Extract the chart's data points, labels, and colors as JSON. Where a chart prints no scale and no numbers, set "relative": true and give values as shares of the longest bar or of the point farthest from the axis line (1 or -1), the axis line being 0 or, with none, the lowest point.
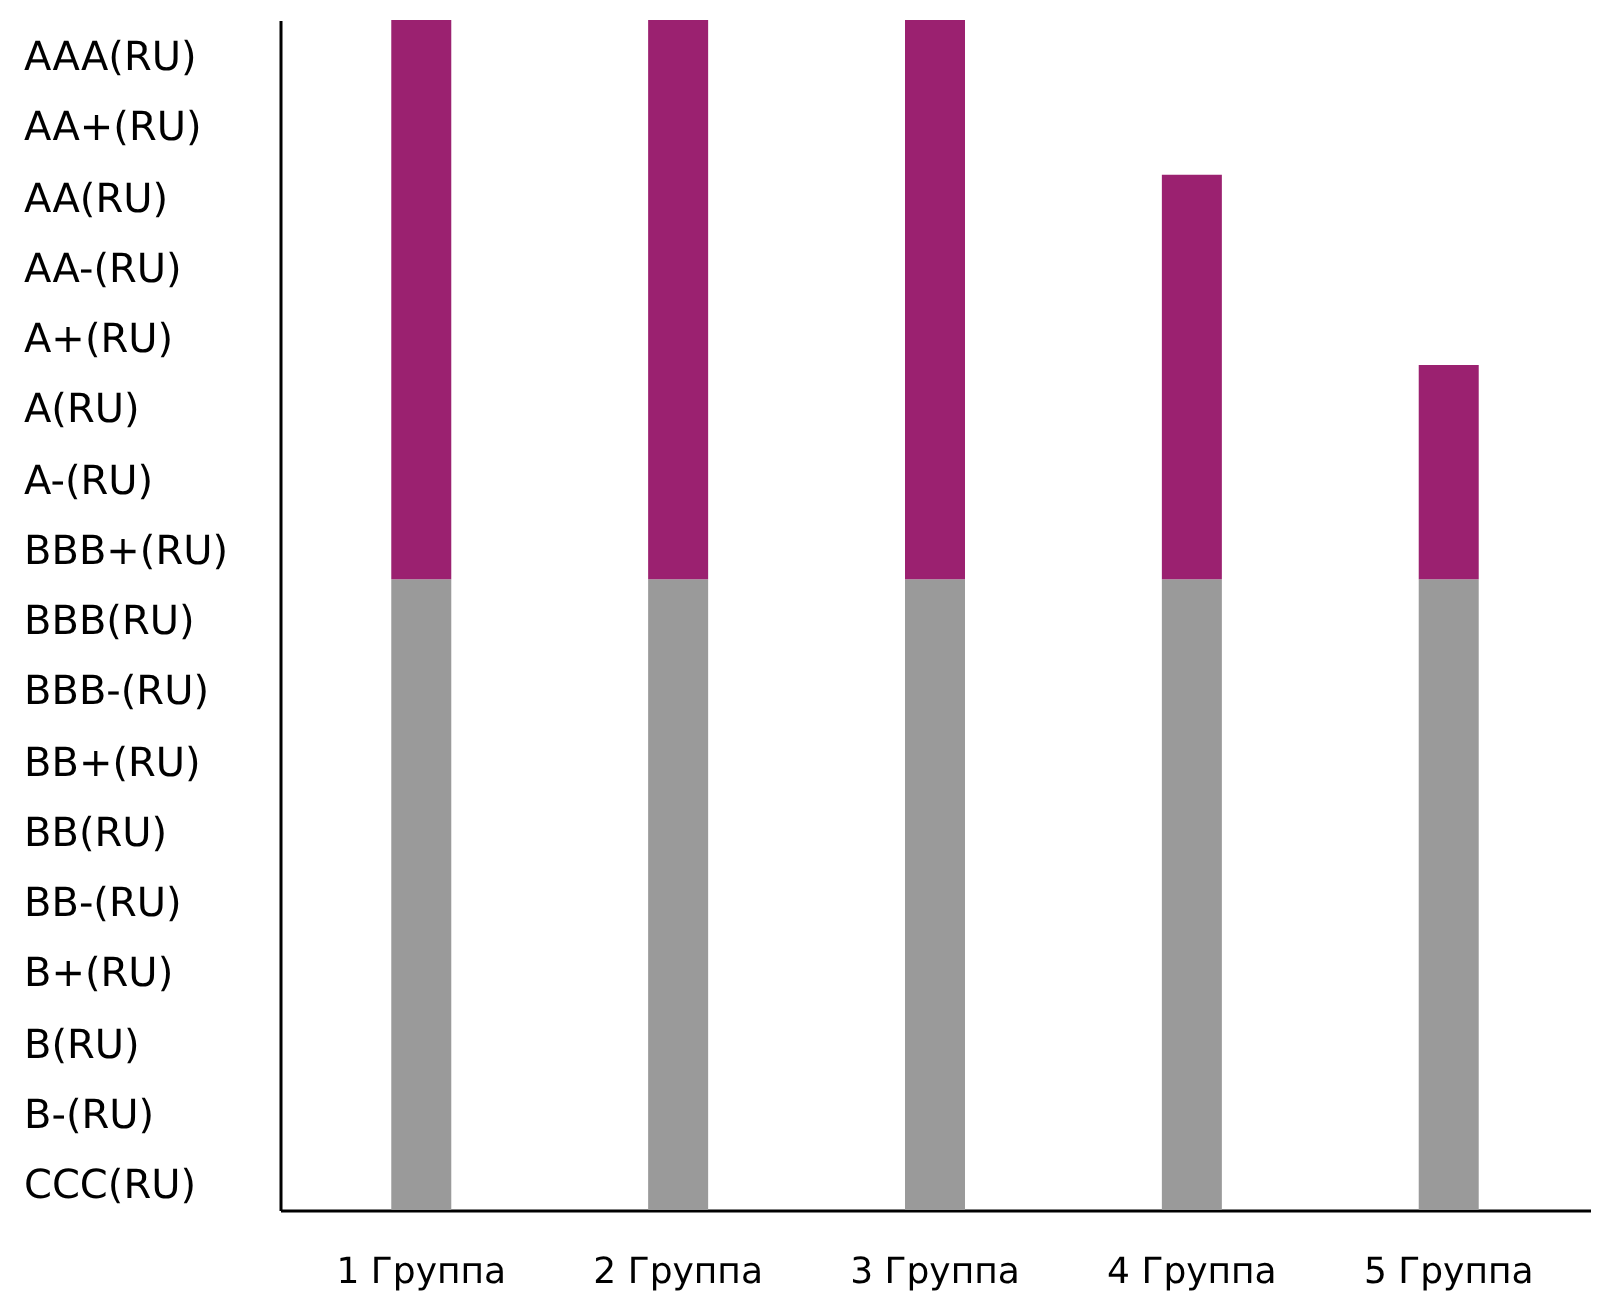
{
  "chart_data": {
    "type": "bar",
    "relative": true,
    "categories": [
      "1 Группа",
      "2 Группа",
      "3 Группа",
      "4 Группа",
      "5 Группа"
    ],
    "series": [
      {
        "color": "#9a9a9a",
        "values": [
          0.53,
          0.53,
          0.53,
          0.53,
          0.53
        ]
      },
      {
        "color": "#9b2170",
        "values": [
          0.47,
          0.47,
          0.47,
          0.34,
          0.18
        ]
      }
    ],
    "stacked": true,
    "annotations": [
      "AAA(RU)",
      "AA+(RU)",
      "AA(RU)",
      "AA-(RU)",
      "A+(RU)",
      "A(RU)",
      "A-(RU)",
      "BBB+(RU)",
      "BBB(RU)",
      "BBB-(RU)",
      "BB+(RU)",
      "BB(RU)",
      "BB-(RU)",
      "B+(RU)",
      "B(RU)",
      "B-(RU)",
      "CCC(RU)"
    ],
    "grid": false
  }
}
